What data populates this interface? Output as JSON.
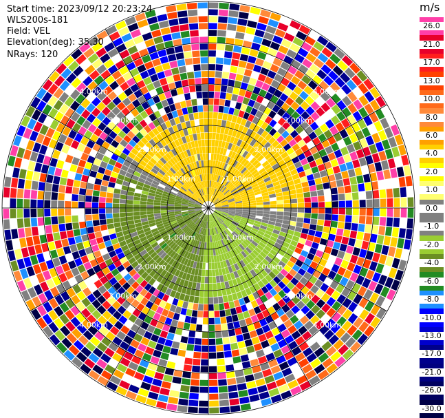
{
  "header": {
    "start_time": "Start time: 2023/09/12 20:23:24",
    "instrument": "WLS200s-181",
    "field": "Field: VEL",
    "elevation": "Elevation(deg): 35.30",
    "nrays": "NRays: 120"
  },
  "colorbar": {
    "unit": "m/s",
    "levels": [
      "26.0",
      "21.0",
      "17.0",
      "13.0",
      "10.0",
      "8.0",
      "6.0",
      "4.0",
      "2.0",
      "1.0",
      "0.0",
      "-1.0",
      "-2.0",
      "-4.0",
      "-6.0",
      "-8.0",
      "-10.0",
      "-13.0",
      "-17.0",
      "-21.0",
      "-26.0",
      "-30.0"
    ],
    "colors": [
      "#ff3fa8",
      "#e8002a",
      "#ff1e1e",
      "#ff4000",
      "#ff6a1a",
      "#ff8a3a",
      "#ffa000",
      "#ffd000",
      "#ffff00",
      "#ffff70",
      "#808080",
      "#808080",
      "#9acd32",
      "#6b8e23",
      "#228b22",
      "#1e90ff",
      "#0000ff",
      "#0000cd",
      "#00008b",
      "#000080",
      "#000060",
      "#000045"
    ]
  },
  "chart_data": {
    "type": "heatmap",
    "projection": "polar-ppi",
    "field": "VEL",
    "units": "m/s",
    "nrays": 120,
    "elevation_deg": 35.3,
    "range_km": [
      0,
      7.5
    ],
    "ring_labels": [
      "1.00km",
      "2.00km",
      "3.00km",
      "4.00km"
    ],
    "value_range": [
      -30.0,
      26.0
    ],
    "sectors": [
      {
        "azimuth_range_deg": [
          300,
          90
        ],
        "range_km": [
          0,
          3.5
        ],
        "velocity_ms": 3.0
      },
      {
        "azimuth_range_deg": [
          90,
          105
        ],
        "range_km": [
          0,
          3.5
        ],
        "velocity_ms": 0.0
      },
      {
        "azimuth_range_deg": [
          105,
          185
        ],
        "range_km": [
          0,
          3.5
        ],
        "velocity_ms": -2.0
      },
      {
        "azimuth_range_deg": [
          185,
          290
        ],
        "range_km": [
          0,
          3.5
        ],
        "velocity_ms": -4.0
      },
      {
        "azimuth_range_deg": [
          290,
          300
        ],
        "range_km": [
          0,
          3.5
        ],
        "velocity_ms": 0.0
      },
      {
        "azimuth_range_deg": [
          0,
          360
        ],
        "range_km": [
          3.5,
          7.5
        ],
        "velocity_ms": "noise"
      }
    ]
  }
}
